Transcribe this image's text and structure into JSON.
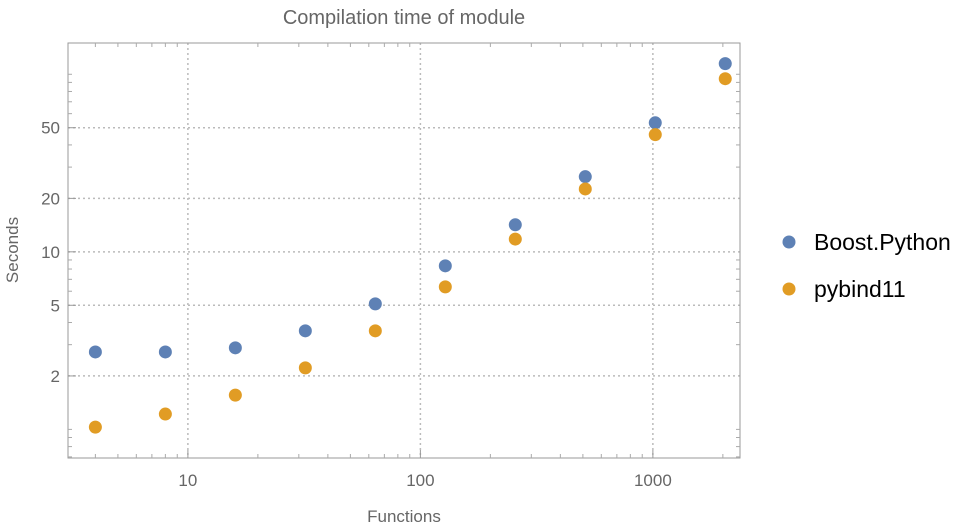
{
  "chart_data": {
    "type": "scatter",
    "title": "Compilation time of module",
    "xlabel": "Functions",
    "ylabel": "Seconds",
    "xscale": "log",
    "yscale": "log",
    "xlim": [
      3.05,
      2370
    ],
    "ylim": [
      0.69,
      150
    ],
    "xticks": [
      10,
      100,
      1000
    ],
    "xtick_labels": [
      "10",
      "100",
      "1000"
    ],
    "yticks": [
      2,
      5,
      10,
      20,
      50
    ],
    "ytick_labels": [
      "2",
      "5",
      "10",
      "20",
      "50"
    ],
    "grid": true,
    "legend_position": "right",
    "x": [
      4,
      8,
      16,
      32,
      64,
      128,
      256,
      512,
      1024,
      2048
    ],
    "series": [
      {
        "name": "Boost.Python",
        "color": "#5e81b5",
        "values": [
          2.73,
          2.73,
          2.88,
          3.59,
          5.09,
          8.34,
          14.2,
          26.5,
          53.3,
          114.8
        ]
      },
      {
        "name": "pybind11",
        "color": "#e19c24",
        "values": [
          1.03,
          1.22,
          1.56,
          2.22,
          3.59,
          6.35,
          11.8,
          22.6,
          45.7,
          94.4
        ]
      }
    ]
  }
}
